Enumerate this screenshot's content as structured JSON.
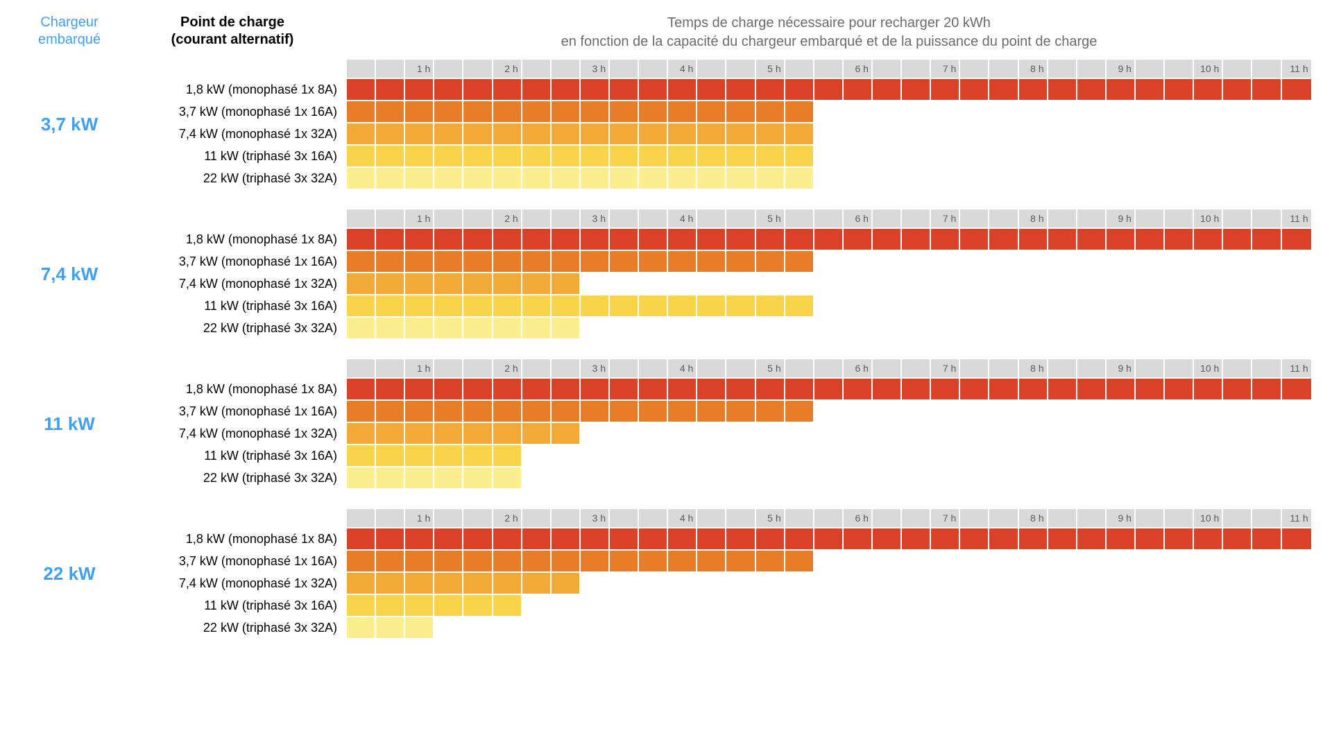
{
  "header": {
    "charger_label": "Chargeur embarqué",
    "charger_color": "#3fa0f0",
    "point_label": "Point de charge\n(courant alternatif)",
    "title_line1": "Temps de charge nécessaire pour recharger 20 kWh",
    "title_line2": "en fonction de la capacité du chargeur embarqué et de la puissance du point de charge"
  },
  "layout": {
    "cell_count": 33,
    "cells_per_hour": 3,
    "axis_bg": "#d9d9d9",
    "axis_labels": [
      "1 h",
      "2 h",
      "3 h",
      "4 h",
      "5 h",
      "6 h",
      "7 h",
      "8 h",
      "9 h",
      "10 h",
      "11 h"
    ]
  },
  "row_palette": [
    "#da4126",
    "#e77d28",
    "#f2a938",
    "#f9d44b",
    "#faee8e"
  ],
  "point_labels": [
    "1,8 kW (monophasé 1x 8A)",
    "3,7 kW (monophasé 1x 16A)",
    "7,4 kW (monophasé 1x 32A)",
    "11 kW (triphasé 3x 16A)",
    "22 kW (triphasé 3x 32A)"
  ],
  "groups": [
    {
      "label": "3,7 kW",
      "bars": [
        33,
        16,
        16,
        16,
        16
      ]
    },
    {
      "label": "7,4 kW",
      "bars": [
        33,
        16,
        8,
        16,
        8
      ]
    },
    {
      "label": "11 kW",
      "bars": [
        33,
        16,
        8,
        6,
        6
      ]
    },
    {
      "label": "22 kW",
      "bars": [
        33,
        16,
        8,
        6,
        3
      ]
    }
  ]
}
